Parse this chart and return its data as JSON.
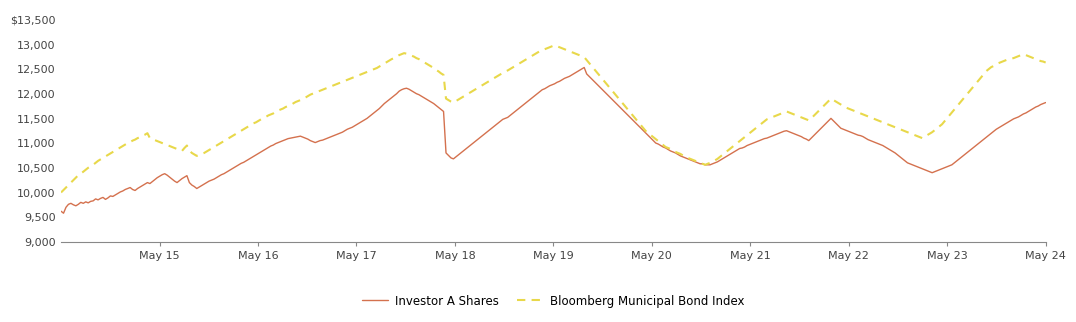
{
  "ylim": [
    9000,
    13700
  ],
  "yticks": [
    9000,
    9500,
    10000,
    10500,
    11000,
    11500,
    12000,
    12500,
    13000,
    13500
  ],
  "ytick_labels": [
    "9,000",
    "9,500",
    "10,000",
    "10,500",
    "11,000",
    "11,500",
    "12,000",
    "12,500",
    "13,000",
    "$13,500"
  ],
  "xtick_labels": [
    "May 15",
    "May 16",
    "May 17",
    "May 18",
    "May 19",
    "May 20",
    "May 21",
    "May 22",
    "May 23",
    "May 24"
  ],
  "line1_color": "#D4714E",
  "line2_color": "#E8D84A",
  "line1_label": "Investor A Shares",
  "line2_label": "Bloomberg Municipal Bond Index",
  "background_color": "#ffffff",
  "investor_a": [
    9620,
    9580,
    9700,
    9760,
    9780,
    9750,
    9730,
    9760,
    9800,
    9780,
    9810,
    9790,
    9820,
    9830,
    9870,
    9850,
    9880,
    9900,
    9860,
    9890,
    9930,
    9920,
    9950,
    9980,
    10010,
    10030,
    10060,
    10080,
    10100,
    10060,
    10040,
    10080,
    10110,
    10140,
    10170,
    10200,
    10180,
    10220,
    10260,
    10300,
    10330,
    10360,
    10380,
    10350,
    10310,
    10270,
    10230,
    10200,
    10240,
    10280,
    10310,
    10340,
    10200,
    10150,
    10120,
    10080,
    10110,
    10140,
    10170,
    10200,
    10230,
    10250,
    10270,
    10300,
    10330,
    10360,
    10380,
    10410,
    10440,
    10470,
    10500,
    10530,
    10560,
    10590,
    10610,
    10640,
    10670,
    10700,
    10730,
    10760,
    10790,
    10820,
    10850,
    10880,
    10910,
    10940,
    10960,
    10990,
    11010,
    11030,
    11050,
    11070,
    11090,
    11100,
    11110,
    11120,
    11130,
    11140,
    11120,
    11100,
    11080,
    11050,
    11030,
    11010,
    11030,
    11050,
    11060,
    11080,
    11100,
    11120,
    11140,
    11160,
    11180,
    11200,
    11220,
    11250,
    11280,
    11300,
    11320,
    11350,
    11380,
    11410,
    11440,
    11470,
    11500,
    11540,
    11580,
    11620,
    11660,
    11700,
    11750,
    11800,
    11840,
    11880,
    11920,
    11960,
    12000,
    12050,
    12080,
    12100,
    12110,
    12090,
    12060,
    12030,
    12000,
    11980,
    11950,
    11920,
    11890,
    11860,
    11830,
    11800,
    11760,
    11720,
    11680,
    11640,
    10800,
    10750,
    10700,
    10680,
    10720,
    10760,
    10800,
    10840,
    10880,
    10920,
    10960,
    11000,
    11040,
    11080,
    11120,
    11160,
    11200,
    11240,
    11280,
    11320,
    11360,
    11400,
    11440,
    11480,
    11500,
    11520,
    11560,
    11600,
    11640,
    11680,
    11720,
    11760,
    11800,
    11840,
    11880,
    11920,
    11960,
    12000,
    12040,
    12080,
    12100,
    12130,
    12160,
    12180,
    12200,
    12230,
    12250,
    12280,
    12310,
    12330,
    12350,
    12380,
    12410,
    12440,
    12470,
    12500,
    12530,
    12400,
    12350,
    12300,
    12250,
    12200,
    12150,
    12100,
    12050,
    12000,
    11950,
    11900,
    11850,
    11800,
    11750,
    11700,
    11650,
    11600,
    11550,
    11500,
    11450,
    11400,
    11350,
    11300,
    11250,
    11200,
    11150,
    11100,
    11050,
    11000,
    10980,
    10950,
    10920,
    10900,
    10870,
    10840,
    10820,
    10800,
    10770,
    10740,
    10720,
    10700,
    10680,
    10660,
    10640,
    10620,
    10600,
    10580,
    10580,
    10560,
    10560,
    10560,
    10580,
    10600,
    10620,
    10650,
    10680,
    10710,
    10740,
    10770,
    10800,
    10830,
    10860,
    10890,
    10900,
    10920,
    10950,
    10970,
    10990,
    11010,
    11030,
    11050,
    11070,
    11090,
    11100,
    11120,
    11140,
    11160,
    11180,
    11200,
    11220,
    11240,
    11250,
    11230,
    11210,
    11190,
    11170,
    11150,
    11130,
    11100,
    11080,
    11050,
    11100,
    11150,
    11200,
    11250,
    11300,
    11350,
    11400,
    11450,
    11500,
    11450,
    11400,
    11350,
    11300,
    11280,
    11260,
    11240,
    11220,
    11200,
    11180,
    11160,
    11150,
    11130,
    11100,
    11070,
    11050,
    11030,
    11010,
    10990,
    10970,
    10950,
    10920,
    10890,
    10860,
    10830,
    10800,
    10760,
    10720,
    10680,
    10640,
    10600,
    10580,
    10560,
    10540,
    10520,
    10500,
    10480,
    10460,
    10440,
    10420,
    10400,
    10420,
    10440,
    10460,
    10480,
    10500,
    10520,
    10540,
    10560,
    10600,
    10640,
    10680,
    10720,
    10760,
    10800,
    10840,
    10880,
    10920,
    10960,
    11000,
    11040,
    11080,
    11120,
    11160,
    11200,
    11240,
    11280,
    11310,
    11340,
    11370,
    11400,
    11430,
    11460,
    11490,
    11510,
    11530,
    11560,
    11590,
    11610,
    11640,
    11670,
    11700,
    11730,
    11750,
    11780,
    11800,
    11820
  ],
  "bloomberg": [
    10000,
    10050,
    10100,
    10150,
    10200,
    10250,
    10300,
    10350,
    10380,
    10420,
    10460,
    10500,
    10530,
    10560,
    10600,
    10640,
    10670,
    10700,
    10730,
    10760,
    10790,
    10820,
    10850,
    10880,
    10910,
    10940,
    10970,
    11000,
    11020,
    11050,
    11070,
    11100,
    11120,
    11150,
    11170,
    11200,
    11100,
    11080,
    11060,
    11040,
    11020,
    11000,
    10980,
    10960,
    10940,
    10920,
    10900,
    10880,
    10860,
    10840,
    10900,
    10950,
    10850,
    10800,
    10770,
    10740,
    10760,
    10780,
    10800,
    10830,
    10860,
    10890,
    10920,
    10950,
    10980,
    11010,
    11040,
    11070,
    11100,
    11130,
    11160,
    11190,
    11220,
    11250,
    11280,
    11310,
    11340,
    11370,
    11400,
    11420,
    11450,
    11480,
    11500,
    11530,
    11560,
    11580,
    11600,
    11630,
    11660,
    11680,
    11700,
    11730,
    11750,
    11770,
    11800,
    11830,
    11850,
    11870,
    11900,
    11920,
    11950,
    11980,
    12000,
    12020,
    12040,
    12060,
    12080,
    12100,
    12120,
    12140,
    12160,
    12180,
    12200,
    12220,
    12240,
    12260,
    12280,
    12300,
    12320,
    12340,
    12360,
    12380,
    12400,
    12420,
    12440,
    12460,
    12480,
    12500,
    12520,
    12550,
    12580,
    12610,
    12640,
    12670,
    12700,
    12720,
    12750,
    12780,
    12800,
    12820,
    12810,
    12790,
    12770,
    12750,
    12720,
    12700,
    12670,
    12640,
    12610,
    12580,
    12550,
    12520,
    12480,
    12450,
    12410,
    12380,
    11900,
    11870,
    11840,
    11820,
    11850,
    11880,
    11910,
    11940,
    11970,
    12000,
    12030,
    12060,
    12090,
    12120,
    12150,
    12180,
    12210,
    12240,
    12270,
    12300,
    12330,
    12360,
    12390,
    12420,
    12450,
    12470,
    12500,
    12530,
    12560,
    12590,
    12620,
    12650,
    12680,
    12710,
    12740,
    12770,
    12800,
    12830,
    12860,
    12880,
    12900,
    12920,
    12940,
    12960,
    12980,
    12960,
    12940,
    12920,
    12900,
    12880,
    12860,
    12840,
    12820,
    12800,
    12780,
    12760,
    12740,
    12680,
    12620,
    12560,
    12500,
    12440,
    12380,
    12320,
    12260,
    12200,
    12140,
    12080,
    12020,
    11960,
    11900,
    11840,
    11780,
    11720,
    11660,
    11600,
    11540,
    11480,
    11420,
    11360,
    11300,
    11240,
    11200,
    11160,
    11120,
    11080,
    11040,
    11000,
    10960,
    10920,
    10900,
    10880,
    10850,
    10820,
    10800,
    10780,
    10750,
    10720,
    10700,
    10680,
    10660,
    10640,
    10620,
    10600,
    10580,
    10560,
    10580,
    10600,
    10620,
    10650,
    10680,
    10720,
    10760,
    10800,
    10840,
    10880,
    10920,
    10960,
    11000,
    11040,
    11080,
    11120,
    11160,
    11200,
    11240,
    11280,
    11320,
    11360,
    11400,
    11440,
    11480,
    11500,
    11520,
    11540,
    11560,
    11580,
    11600,
    11620,
    11640,
    11620,
    11600,
    11580,
    11560,
    11540,
    11520,
    11500,
    11480,
    11460,
    11500,
    11550,
    11600,
    11650,
    11700,
    11750,
    11800,
    11850,
    11900,
    11870,
    11840,
    11810,
    11780,
    11750,
    11720,
    11700,
    11680,
    11660,
    11640,
    11620,
    11600,
    11580,
    11560,
    11540,
    11520,
    11500,
    11480,
    11460,
    11440,
    11420,
    11400,
    11380,
    11360,
    11340,
    11320,
    11300,
    11280,
    11260,
    11240,
    11220,
    11200,
    11180,
    11160,
    11140,
    11120,
    11100,
    11130,
    11160,
    11190,
    11220,
    11260,
    11300,
    11340,
    11380,
    11440,
    11500,
    11560,
    11620,
    11680,
    11740,
    11800,
    11860,
    11920,
    11980,
    12040,
    12100,
    12160,
    12220,
    12280,
    12340,
    12400,
    12460,
    12500,
    12540,
    12560,
    12600,
    12620,
    12640,
    12660,
    12680,
    12700,
    12710,
    12720,
    12740,
    12760,
    12780,
    12800,
    12780,
    12760,
    12740,
    12720,
    12700,
    12680,
    12660,
    12650,
    12630
  ]
}
